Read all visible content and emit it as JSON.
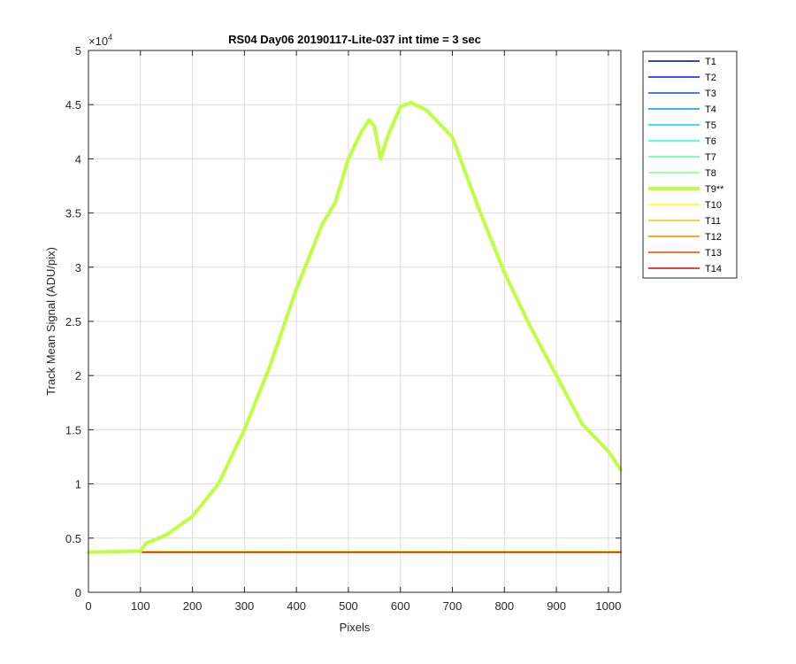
{
  "chart_data": {
    "type": "line",
    "title": "RS04 Day06 20190117-Lite-037 int time = 3 sec",
    "xlabel": "Pixels",
    "ylabel": "Track Mean Signal (ADU/pix)",
    "y_exponent_label": "×10",
    "y_exponent": "4",
    "xlim": [
      0,
      1024
    ],
    "ylim": [
      0,
      50000
    ],
    "xticks": [
      0,
      100,
      200,
      300,
      400,
      500,
      600,
      700,
      800,
      900,
      1000
    ],
    "yticks": [
      0,
      5000,
      10000,
      15000,
      20000,
      25000,
      30000,
      35000,
      40000,
      45000,
      50000
    ],
    "ytick_labels": [
      "0",
      "0.5",
      "1",
      "1.5",
      "2",
      "2.5",
      "3",
      "3.5",
      "4",
      "4.5",
      "5"
    ],
    "grid": true,
    "legend_position": "outside-right-top",
    "series": [
      {
        "name": "T1",
        "color": "#00008f",
        "x": [
          0,
          1024
        ],
        "y": [
          3700,
          3700
        ]
      },
      {
        "name": "T2",
        "color": "#0010ff",
        "x": [
          0,
          1024
        ],
        "y": [
          3700,
          3700
        ]
      },
      {
        "name": "T3",
        "color": "#0050ff",
        "x": [
          0,
          1024
        ],
        "y": [
          3700,
          3700
        ]
      },
      {
        "name": "T4",
        "color": "#0090ff",
        "x": [
          0,
          1024
        ],
        "y": [
          3700,
          3700
        ]
      },
      {
        "name": "T5",
        "color": "#00d0ff",
        "x": [
          0,
          1024
        ],
        "y": [
          3700,
          3700
        ]
      },
      {
        "name": "T6",
        "color": "#20ffdf",
        "x": [
          0,
          1024
        ],
        "y": [
          3700,
          3700
        ]
      },
      {
        "name": "T7",
        "color": "#60ffa0",
        "x": [
          0,
          1024
        ],
        "y": [
          3700,
          3700
        ]
      },
      {
        "name": "T8",
        "color": "#80ff80",
        "x": [
          0,
          1024
        ],
        "y": [
          3700,
          3700
        ]
      },
      {
        "name": "T9**",
        "color": "#bfff40",
        "highlight": true,
        "x": [
          0,
          100,
          110,
          150,
          200,
          250,
          300,
          350,
          400,
          450,
          475,
          500,
          525,
          540,
          550,
          562,
          575,
          600,
          620,
          650,
          700,
          750,
          800,
          850,
          900,
          950,
          1000,
          1024
        ],
        "y": [
          3700,
          3800,
          4500,
          5300,
          7000,
          10000,
          15000,
          21000,
          28000,
          34000,
          36000,
          40000,
          42500,
          43600,
          43000,
          40000,
          42000,
          44800,
          45200,
          44500,
          42000,
          35500,
          29500,
          24500,
          20000,
          15500,
          13000,
          11300
        ]
      },
      {
        "name": "T10",
        "color": "#ffff00",
        "x": [
          0,
          1024
        ],
        "y": [
          3800,
          3800
        ]
      },
      {
        "name": "T11",
        "color": "#ffbf00",
        "x": [
          0,
          1024
        ],
        "y": [
          3700,
          3700
        ]
      },
      {
        "name": "T12",
        "color": "#ff8000",
        "x": [
          0,
          1024
        ],
        "y": [
          3700,
          3700
        ]
      },
      {
        "name": "T13",
        "color": "#ff4000",
        "x": [
          0,
          1024
        ],
        "y": [
          3700,
          3700
        ]
      },
      {
        "name": "T14",
        "color": "#df0000",
        "x": [
          0,
          1024
        ],
        "y": [
          3700,
          3700
        ]
      }
    ]
  }
}
